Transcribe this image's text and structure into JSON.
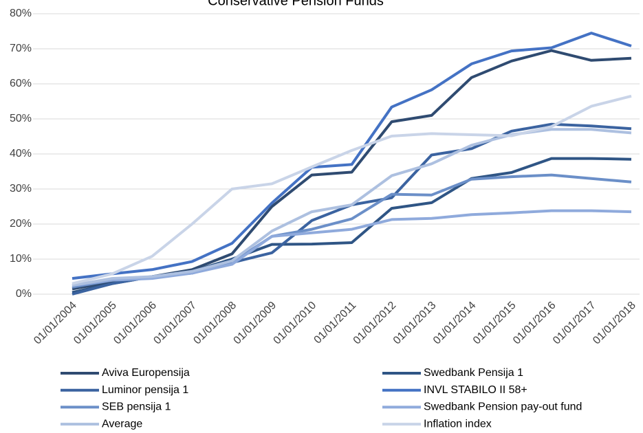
{
  "chart_data": {
    "type": "line",
    "title": "Conservative Pension Funds",
    "categories": [
      "01/01/2004",
      "01/01/2005",
      "01/01/2006",
      "01/01/2007",
      "01/01/2008",
      "01/01/2009",
      "01/01/2010",
      "01/01/2011",
      "01/01/2012",
      "01/01/2013",
      "01/01/2014",
      "01/01/2015",
      "01/01/2016",
      "01/01/2017",
      "01/01/2018"
    ],
    "series": [
      {
        "name": "Aviva Europensija",
        "color": "#2f4b71",
        "values": [
          1.5,
          3.5,
          5,
          7,
          11.5,
          25,
          34,
          34.8,
          49.2,
          51,
          61.8,
          66.5,
          69.5,
          66.7,
          67.3
        ]
      },
      {
        "name": "Swedbank Pensija 1",
        "color": "#2f5585",
        "values": [
          0.5,
          3,
          5,
          6.5,
          10,
          14.2,
          14.3,
          14.7,
          24.5,
          26.1,
          33,
          34.7,
          38.7,
          38.7,
          38.5
        ]
      },
      {
        "name": "Luminor pensija 1",
        "color": "#3b63a0",
        "values": [
          0,
          3,
          5,
          6,
          9,
          11.8,
          21,
          25.5,
          27.5,
          39.7,
          41.5,
          46.5,
          48.5,
          48,
          47.2
        ]
      },
      {
        "name": "INVL STABILO II 58+",
        "color": "#4472c4",
        "values": [
          4.5,
          5.8,
          7,
          9.3,
          14.5,
          26,
          36.2,
          37,
          53.4,
          58.3,
          65.7,
          69.4,
          70.3,
          74.5,
          70.8
        ]
      },
      {
        "name": "SEB pensija 1",
        "color": "#6b8fc8",
        "values": [
          2,
          4,
          5,
          6,
          9,
          16.5,
          18.5,
          21.5,
          28.5,
          28.3,
          32.8,
          33.5,
          34,
          33,
          32
        ]
      },
      {
        "name": "Swedbank Pension pay-out fund",
        "color": "#8faadc",
        "values": [
          2.5,
          4,
          4.5,
          6,
          8.5,
          16.5,
          17.5,
          18.5,
          21.3,
          21.6,
          22.7,
          23.2,
          23.8,
          23.8,
          23.5
        ]
      },
      {
        "name": "Average",
        "color": "#adc0e0",
        "values": [
          2.5,
          4.5,
          5,
          6.5,
          9.5,
          18,
          23.5,
          25.5,
          33.8,
          37.2,
          42.5,
          45.5,
          47,
          47,
          46
        ]
      },
      {
        "name": "Inflation index",
        "color": "#c9d4e8",
        "values": [
          3,
          5.8,
          10.8,
          20,
          30,
          31.5,
          36.3,
          41,
          45.1,
          45.8,
          45.5,
          45.2,
          47.8,
          53.6,
          56.5
        ]
      }
    ],
    "ylim": [
      0,
      80
    ],
    "yticks": [
      {
        "value": 0,
        "label": "0%"
      },
      {
        "value": 10,
        "label": "10%"
      },
      {
        "value": 20,
        "label": "20%"
      },
      {
        "value": 30,
        "label": "30%"
      },
      {
        "value": 40,
        "label": "40%"
      },
      {
        "value": 50,
        "label": "50%"
      },
      {
        "value": 60,
        "label": "60%"
      },
      {
        "value": 70,
        "label": "70%"
      },
      {
        "value": 80,
        "label": "80%"
      }
    ],
    "grid": true
  }
}
